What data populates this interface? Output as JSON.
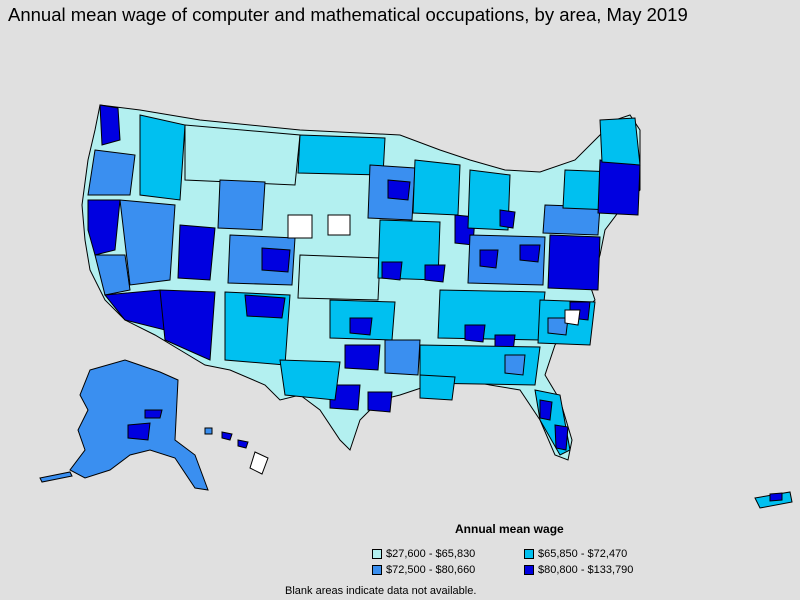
{
  "title": "Annual mean wage of computer and mathematical occupations, by area, May 2019",
  "legend": {
    "title": "Annual mean wage",
    "items": [
      {
        "label": "$27,600 - $65,830",
        "color": "#b3f0f0"
      },
      {
        "label": "$65,850 - $72,470",
        "color": "#00c0f0"
      },
      {
        "label": "$72,500 - $80,660",
        "color": "#3a8ff0"
      },
      {
        "label": "$80,800 - $133,790",
        "color": "#0000e0"
      }
    ]
  },
  "note": "Blank areas indicate data not available.",
  "colors": {
    "background": "#e0e0e0",
    "border": "#000000",
    "no_data": "#ffffff"
  }
}
